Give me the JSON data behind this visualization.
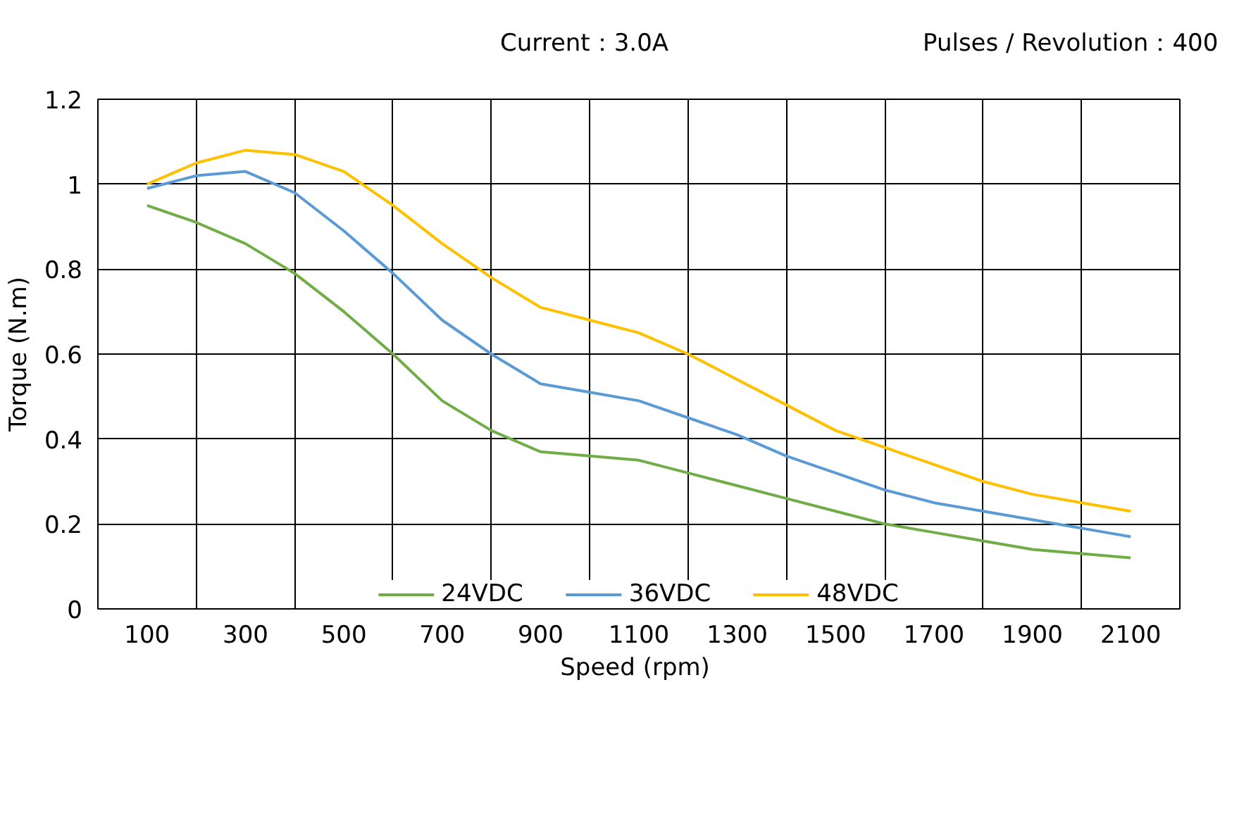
{
  "chart_data": {
    "type": "line",
    "xlabel": "Speed  (rpm)",
    "ylabel": "Torque (N.m)",
    "annotations": [
      "Current：3.0A",
      "Pulses / Revolution：400"
    ],
    "x": [
      100,
      200,
      300,
      400,
      500,
      600,
      700,
      800,
      900,
      1000,
      1100,
      1200,
      1300,
      1400,
      1500,
      1600,
      1700,
      1800,
      1900,
      2000,
      2100
    ],
    "series": [
      {
        "name": "24VDC",
        "color": "#70ad47",
        "values": [
          0.95,
          0.91,
          0.86,
          0.79,
          0.7,
          0.6,
          0.49,
          0.42,
          0.37,
          0.36,
          0.35,
          0.32,
          0.29,
          0.26,
          0.23,
          0.2,
          0.18,
          0.16,
          0.14,
          0.13,
          0.12
        ]
      },
      {
        "name": "36VDC",
        "color": "#5b9bd5",
        "values": [
          0.99,
          1.02,
          1.03,
          0.98,
          0.89,
          0.79,
          0.68,
          0.6,
          0.53,
          0.51,
          0.49,
          0.45,
          0.41,
          0.36,
          0.32,
          0.28,
          0.25,
          0.23,
          0.21,
          0.19,
          0.17
        ]
      },
      {
        "name": "48VDC",
        "color": "#ffc000",
        "values": [
          1.0,
          1.05,
          1.08,
          1.07,
          1.03,
          0.95,
          0.86,
          0.78,
          0.71,
          0.68,
          0.65,
          0.6,
          0.54,
          0.48,
          0.42,
          0.38,
          0.34,
          0.3,
          0.27,
          0.25,
          0.23
        ]
      }
    ],
    "xlim": [
      0,
      2200
    ],
    "xticks": [
      100,
      300,
      500,
      700,
      900,
      1100,
      1300,
      1500,
      1700,
      1900,
      2100
    ],
    "ylim": [
      0,
      1.2
    ],
    "yticks": [
      0,
      {
        "value": 0.2,
        "label": "0.2"
      },
      {
        "value": 0.4,
        "label": "0.4"
      },
      {
        "value": 0.6,
        "label": "0.6"
      },
      {
        "value": 0.8,
        "label": "0.8"
      },
      1,
      {
        "value": 1.2,
        "label": "1.2"
      }
    ],
    "grid": true,
    "legend": "bottom",
    "marker": "none",
    "line_style": "solid"
  }
}
